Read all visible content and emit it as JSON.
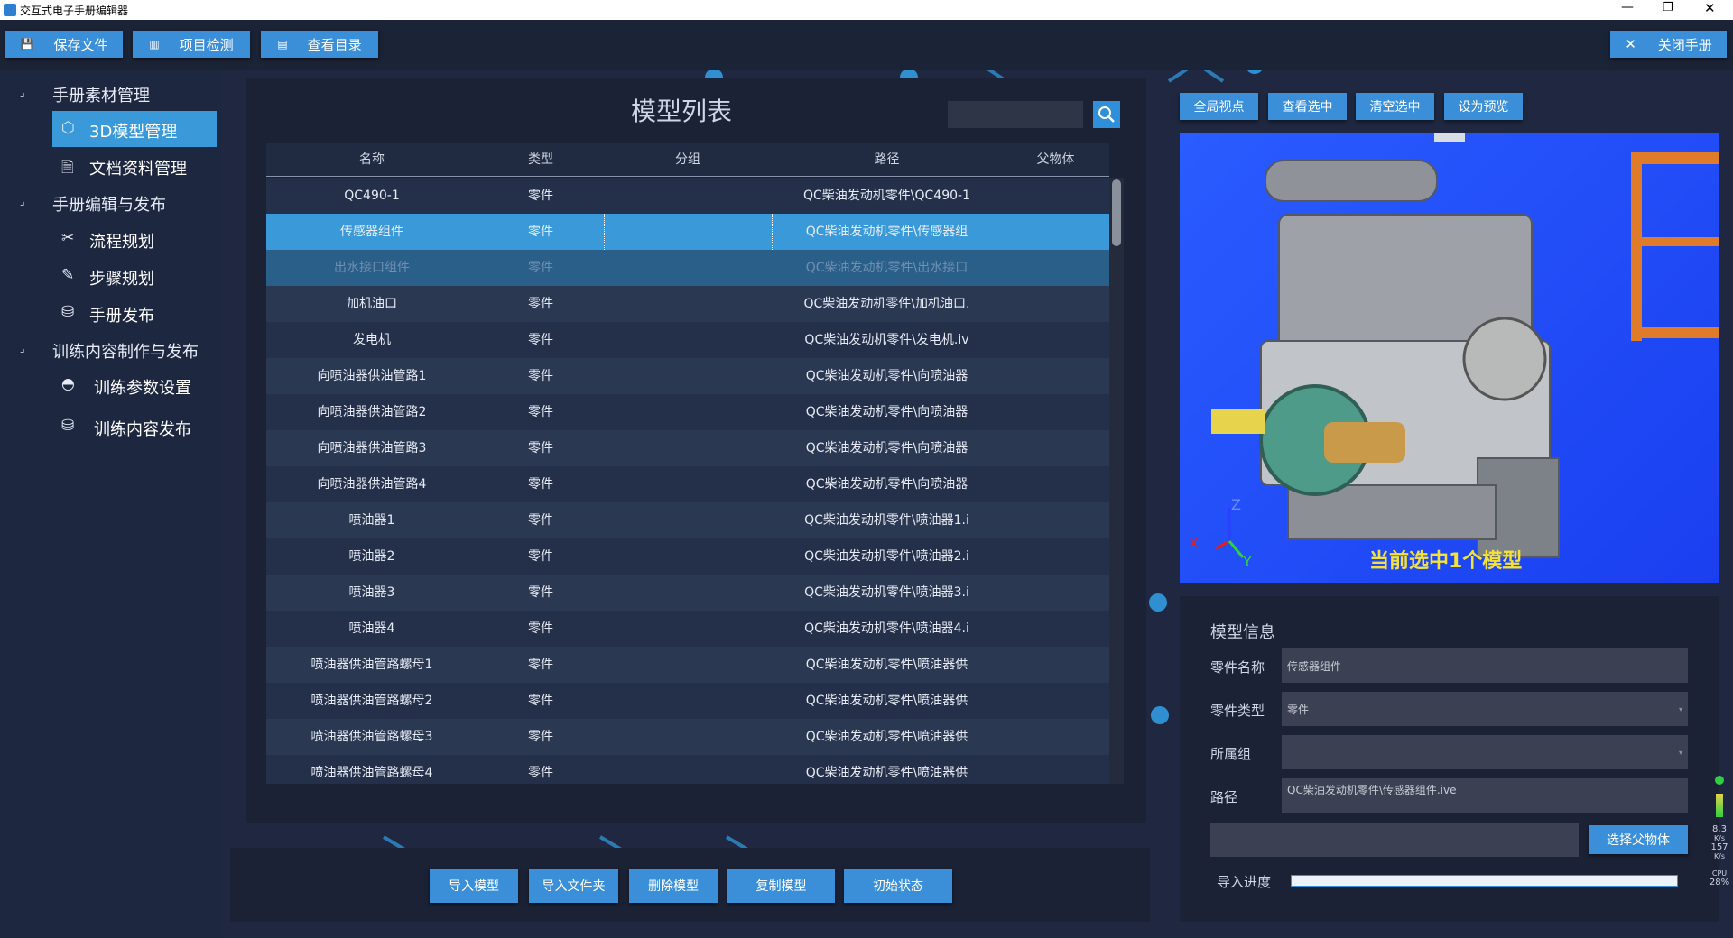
{
  "window": {
    "title": "交互式电子手册编辑器"
  },
  "toolbar": {
    "buttons": [
      "保存文件",
      "项目检测",
      "查看目录"
    ],
    "close": "关闭手册"
  },
  "sidebar": {
    "groups": [
      {
        "label": "手册素材管理",
        "items": [
          "3D模型管理",
          "文档资料管理"
        ]
      },
      {
        "label": "手册编辑与发布",
        "items": [
          "流程规划",
          "步骤规划",
          "手册发布"
        ]
      },
      {
        "label": "训练内容制作与发布",
        "items": [
          "训练参数设置",
          "训练内容发布"
        ]
      }
    ]
  },
  "model_list": {
    "title": "模型列表",
    "columns": [
      "名称",
      "类型",
      "分组",
      "路径",
      "父物体"
    ],
    "rows": [
      {
        "name": "QC490-1",
        "type": "零件",
        "path": "QC柴油发动机零件\\QC490-1"
      },
      {
        "name": "传感器组件",
        "type": "零件",
        "path": "QC柴油发动机零件\\传感器组"
      },
      {
        "name": "出水接口组件",
        "type": "零件",
        "path": "QC柴油发动机零件\\出水接口"
      },
      {
        "name": "加机油口",
        "type": "零件",
        "path": "QC柴油发动机零件\\加机油口."
      },
      {
        "name": "发电机",
        "type": "零件",
        "path": "QC柴油发动机零件\\发电机.iv"
      },
      {
        "name": "向喷油器供油管路1",
        "type": "零件",
        "path": "QC柴油发动机零件\\向喷油器"
      },
      {
        "name": "向喷油器供油管路2",
        "type": "零件",
        "path": "QC柴油发动机零件\\向喷油器"
      },
      {
        "name": "向喷油器供油管路3",
        "type": "零件",
        "path": "QC柴油发动机零件\\向喷油器"
      },
      {
        "name": "向喷油器供油管路4",
        "type": "零件",
        "path": "QC柴油发动机零件\\向喷油器"
      },
      {
        "name": "喷油器1",
        "type": "零件",
        "path": "QC柴油发动机零件\\喷油器1.i"
      },
      {
        "name": "喷油器2",
        "type": "零件",
        "path": "QC柴油发动机零件\\喷油器2.i"
      },
      {
        "name": "喷油器3",
        "type": "零件",
        "path": "QC柴油发动机零件\\喷油器3.i"
      },
      {
        "name": "喷油器4",
        "type": "零件",
        "path": "QC柴油发动机零件\\喷油器4.i"
      },
      {
        "name": "喷油器供油管路螺母1",
        "type": "零件",
        "path": "QC柴油发动机零件\\喷油器供"
      },
      {
        "name": "喷油器供油管路螺母2",
        "type": "零件",
        "path": "QC柴油发动机零件\\喷油器供"
      },
      {
        "name": "喷油器供油管路螺母3",
        "type": "零件",
        "path": "QC柴油发动机零件\\喷油器供"
      },
      {
        "name": "喷油器供油管路螺母4",
        "type": "零件",
        "path": "QC柴油发动机零件\\喷油器供"
      }
    ],
    "actions": [
      "导入模型",
      "导入文件夹",
      "删除模型",
      "复制模型",
      "初始状态"
    ]
  },
  "viewer": {
    "buttons": [
      "全局视点",
      "查看选中",
      "清空选中",
      "设为预览"
    ],
    "caption": "当前选中1个模型",
    "axes": [
      "X",
      "Y",
      "Z"
    ]
  },
  "model_info": {
    "title": "模型信息",
    "fields": [
      {
        "label": "零件名称",
        "value": "传感器组件"
      },
      {
        "label": "零件类型",
        "value": "零件"
      },
      {
        "label": "所属组"
      },
      {
        "label": "路径",
        "value": "QC柴油发动机零件\\传感器组件.ive"
      }
    ],
    "choose_parent": "选择父物体",
    "progress_label": "导入进度"
  },
  "status": {
    "up": "8.3",
    "up_unit": "K/s",
    "down": "157",
    "down_unit": "K/s",
    "cpu_label": "CPU",
    "cpu": "28%"
  }
}
